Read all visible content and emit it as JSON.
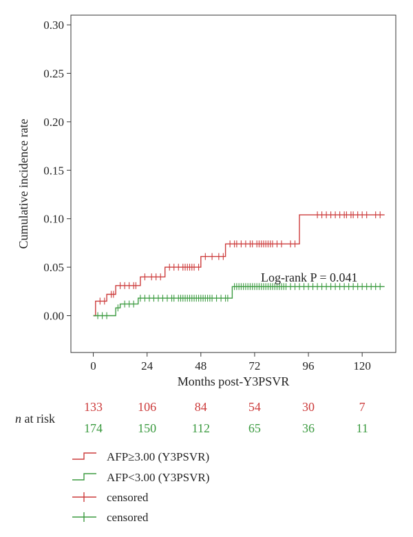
{
  "chart_data": {
    "type": "line",
    "title": "",
    "xlabel": "Months post-Y3PSVR",
    "ylabel": "Cumulative incidence rate",
    "xlim": [
      -10,
      135
    ],
    "ylim": [
      -0.038,
      0.31
    ],
    "xticks": [
      0,
      24,
      48,
      72,
      96,
      120
    ],
    "yticks": [
      0.0,
      0.05,
      0.1,
      0.15,
      0.2,
      0.25,
      0.3
    ],
    "ytick_labels": [
      "0.00",
      "0.05",
      "0.10",
      "0.15",
      "0.20",
      "0.25",
      "0.30"
    ],
    "grid": false,
    "annotation": "Log-rank P = 0.041",
    "series": [
      {
        "name": "AFP≥3.00 (Y3PSVR)",
        "color": "#cc3a3a",
        "step": [
          [
            0,
            0.0
          ],
          [
            1,
            0.0
          ],
          [
            1,
            0.015
          ],
          [
            6,
            0.015
          ],
          [
            6,
            0.022
          ],
          [
            10,
            0.022
          ],
          [
            10,
            0.031
          ],
          [
            21,
            0.031
          ],
          [
            21,
            0.04
          ],
          [
            32,
            0.04
          ],
          [
            32,
            0.05
          ],
          [
            48,
            0.05
          ],
          [
            48,
            0.061
          ],
          [
            59,
            0.061
          ],
          [
            59,
            0.074
          ],
          [
            92,
            0.074
          ],
          [
            92,
            0.104
          ],
          [
            130,
            0.104
          ]
        ],
        "censored": [
          [
            3,
            0.015
          ],
          [
            5,
            0.015
          ],
          [
            8,
            0.022
          ],
          [
            9,
            0.022
          ],
          [
            12,
            0.031
          ],
          [
            14,
            0.031
          ],
          [
            16,
            0.031
          ],
          [
            18,
            0.031
          ],
          [
            19,
            0.031
          ],
          [
            23,
            0.04
          ],
          [
            26,
            0.04
          ],
          [
            28,
            0.04
          ],
          [
            30,
            0.04
          ],
          [
            34,
            0.05
          ],
          [
            36,
            0.05
          ],
          [
            38,
            0.05
          ],
          [
            40,
            0.05
          ],
          [
            41,
            0.05
          ],
          [
            42,
            0.05
          ],
          [
            43,
            0.05
          ],
          [
            44,
            0.05
          ],
          [
            45,
            0.05
          ],
          [
            47,
            0.05
          ],
          [
            50,
            0.061
          ],
          [
            53,
            0.061
          ],
          [
            56,
            0.061
          ],
          [
            58,
            0.061
          ],
          [
            61,
            0.074
          ],
          [
            63,
            0.074
          ],
          [
            64,
            0.074
          ],
          [
            66,
            0.074
          ],
          [
            68,
            0.074
          ],
          [
            70,
            0.074
          ],
          [
            71,
            0.074
          ],
          [
            73,
            0.074
          ],
          [
            74,
            0.074
          ],
          [
            75,
            0.074
          ],
          [
            76,
            0.074
          ],
          [
            77,
            0.074
          ],
          [
            78,
            0.074
          ],
          [
            79,
            0.074
          ],
          [
            80,
            0.074
          ],
          [
            82,
            0.074
          ],
          [
            84,
            0.074
          ],
          [
            88,
            0.074
          ],
          [
            90,
            0.074
          ],
          [
            100,
            0.104
          ],
          [
            102,
            0.104
          ],
          [
            104,
            0.104
          ],
          [
            106,
            0.104
          ],
          [
            108,
            0.104
          ],
          [
            110,
            0.104
          ],
          [
            112,
            0.104
          ],
          [
            113,
            0.104
          ],
          [
            115,
            0.104
          ],
          [
            116,
            0.104
          ],
          [
            118,
            0.104
          ],
          [
            120,
            0.104
          ],
          [
            122,
            0.104
          ],
          [
            126,
            0.104
          ],
          [
            128,
            0.104
          ]
        ]
      },
      {
        "name": "AFP<3.00 (Y3PSVR)",
        "color": "#3a9a3f",
        "step": [
          [
            0,
            0.0
          ],
          [
            10,
            0.0
          ],
          [
            10,
            0.008
          ],
          [
            12,
            0.008
          ],
          [
            12,
            0.012
          ],
          [
            20,
            0.012
          ],
          [
            20,
            0.018
          ],
          [
            62,
            0.018
          ],
          [
            62,
            0.03
          ],
          [
            130,
            0.03
          ]
        ],
        "censored": [
          [
            2,
            0.0
          ],
          [
            4,
            0.0
          ],
          [
            6,
            0.0
          ],
          [
            11,
            0.008
          ],
          [
            14,
            0.012
          ],
          [
            16,
            0.012
          ],
          [
            18,
            0.012
          ],
          [
            21,
            0.018
          ],
          [
            23,
            0.018
          ],
          [
            25,
            0.018
          ],
          [
            27,
            0.018
          ],
          [
            29,
            0.018
          ],
          [
            31,
            0.018
          ],
          [
            33,
            0.018
          ],
          [
            35,
            0.018
          ],
          [
            36,
            0.018
          ],
          [
            38,
            0.018
          ],
          [
            39,
            0.018
          ],
          [
            40,
            0.018
          ],
          [
            41,
            0.018
          ],
          [
            42,
            0.018
          ],
          [
            43,
            0.018
          ],
          [
            44,
            0.018
          ],
          [
            45,
            0.018
          ],
          [
            46,
            0.018
          ],
          [
            47,
            0.018
          ],
          [
            48,
            0.018
          ],
          [
            49,
            0.018
          ],
          [
            50,
            0.018
          ],
          [
            51,
            0.018
          ],
          [
            52,
            0.018
          ],
          [
            53,
            0.018
          ],
          [
            55,
            0.018
          ],
          [
            57,
            0.018
          ],
          [
            59,
            0.018
          ],
          [
            60,
            0.018
          ],
          [
            63,
            0.03
          ],
          [
            64,
            0.03
          ],
          [
            65,
            0.03
          ],
          [
            66,
            0.03
          ],
          [
            67,
            0.03
          ],
          [
            68,
            0.03
          ],
          [
            69,
            0.03
          ],
          [
            70,
            0.03
          ],
          [
            71,
            0.03
          ],
          [
            72,
            0.03
          ],
          [
            73,
            0.03
          ],
          [
            74,
            0.03
          ],
          [
            75,
            0.03
          ],
          [
            76,
            0.03
          ],
          [
            77,
            0.03
          ],
          [
            78,
            0.03
          ],
          [
            79,
            0.03
          ],
          [
            80,
            0.03
          ],
          [
            81,
            0.03
          ],
          [
            82,
            0.03
          ],
          [
            83,
            0.03
          ],
          [
            84,
            0.03
          ],
          [
            85,
            0.03
          ],
          [
            86,
            0.03
          ],
          [
            88,
            0.03
          ],
          [
            90,
            0.03
          ],
          [
            92,
            0.03
          ],
          [
            94,
            0.03
          ],
          [
            96,
            0.03
          ],
          [
            98,
            0.03
          ],
          [
            100,
            0.03
          ],
          [
            102,
            0.03
          ],
          [
            104,
            0.03
          ],
          [
            106,
            0.03
          ],
          [
            108,
            0.03
          ],
          [
            110,
            0.03
          ],
          [
            112,
            0.03
          ],
          [
            114,
            0.03
          ],
          [
            116,
            0.03
          ],
          [
            118,
            0.03
          ],
          [
            120,
            0.03
          ],
          [
            122,
            0.03
          ],
          [
            124,
            0.03
          ],
          [
            126,
            0.03
          ],
          [
            128,
            0.03
          ]
        ]
      }
    ]
  },
  "risk_table": {
    "title_italic": "n",
    "title_rest": " at risk",
    "rows": [
      {
        "color": "#cc3a3a",
        "values": [
          "133",
          "106",
          "84",
          "54",
          "30",
          "7"
        ]
      },
      {
        "color": "#3a9a3f",
        "values": [
          "174",
          "150",
          "112",
          "65",
          "36",
          "11"
        ]
      }
    ]
  },
  "legend": [
    {
      "label": "AFP≥3.00 (Y3PSVR)",
      "color": "#cc3a3a",
      "kind": "step"
    },
    {
      "label": "AFP<3.00 (Y3PSVR)",
      "color": "#3a9a3f",
      "kind": "step"
    },
    {
      "label": "censored",
      "color": "#cc3a3a",
      "kind": "censor"
    },
    {
      "label": "censored",
      "color": "#3a9a3f",
      "kind": "censor"
    }
  ]
}
